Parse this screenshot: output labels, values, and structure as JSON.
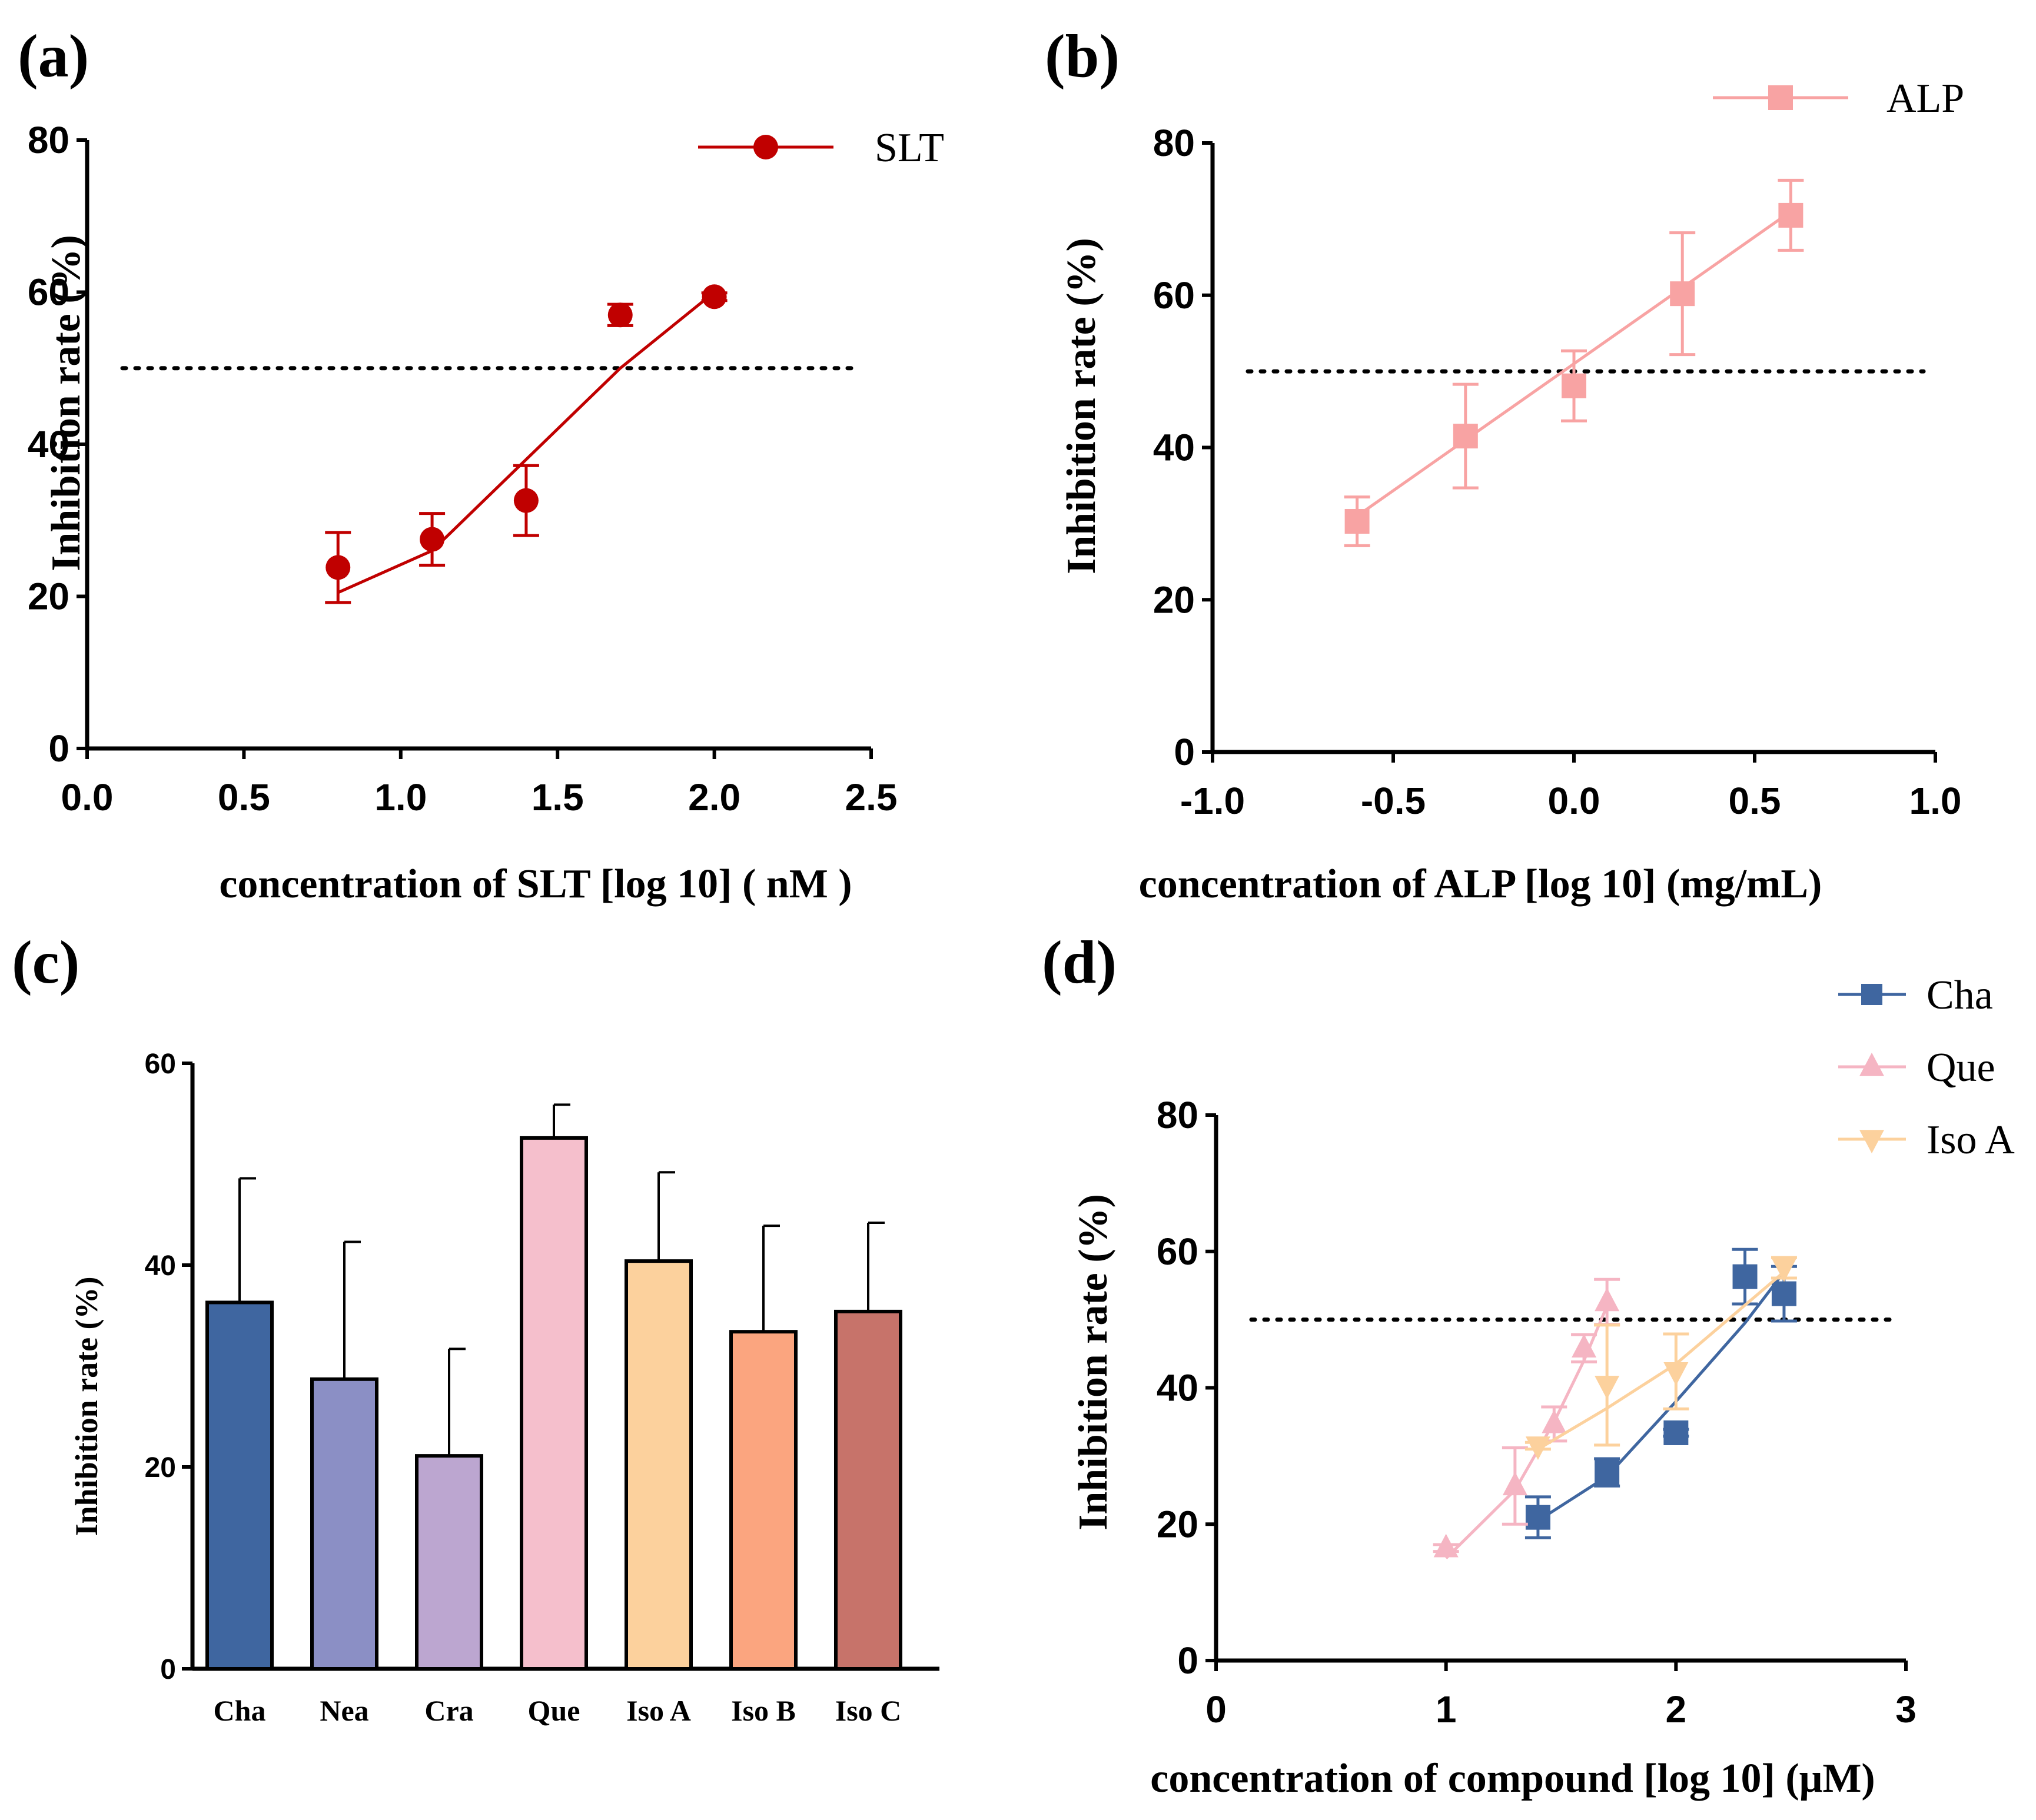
{
  "chart_data": [
    {
      "panel": "(a)",
      "type": "line",
      "xlabel": "concentration of SLT [log 10] ( nM )",
      "ylabel": "Inhibition rate (%)",
      "xlim": [
        0,
        2.5
      ],
      "ylim": [
        0,
        80
      ],
      "xticks": [
        "0.0",
        "0.5",
        "1.0",
        "1.5",
        "2.0",
        "2.5"
      ],
      "yticks": [
        "0",
        "20",
        "40",
        "60",
        "80"
      ],
      "reference_line": 50,
      "legend_position": "top-right",
      "series": [
        {
          "name": "SLT",
          "color": "#c00000",
          "marker": "circle",
          "points": [
            {
              "x": 0.8,
              "y": 23.8,
              "err": 4.6
            },
            {
              "x": 1.1,
              "y": 27.5,
              "err": 3.4
            },
            {
              "x": 1.4,
              "y": 32.6,
              "err": 4.6
            },
            {
              "x": 1.7,
              "y": 57.0,
              "err": 1.4
            },
            {
              "x": 2.0,
              "y": 59.4,
              "err": 0.5
            }
          ],
          "fit": [
            [
              0.8,
              20.5
            ],
            [
              1.1,
              26.0
            ],
            [
              1.4,
              38.0
            ],
            [
              1.7,
              50.0
            ],
            [
              2.0,
              60.0
            ]
          ]
        }
      ]
    },
    {
      "panel": "(b)",
      "type": "line",
      "xlabel": "concentration of ALP [log 10] (mg/mL)",
      "ylabel": "Inhibition rate (%)",
      "xlim": [
        -1.0,
        1.0
      ],
      "ylim": [
        0,
        80
      ],
      "xticks": [
        "-1.0",
        "-0.5",
        "0.0",
        "0.5",
        "1.0"
      ],
      "yticks": [
        "0",
        "20",
        "40",
        "60",
        "80"
      ],
      "reference_line": 50,
      "legend_position": "top-right",
      "series": [
        {
          "name": "ALP",
          "color": "#f8a3a3",
          "marker": "square",
          "points": [
            {
              "x": -0.6,
              "y": 30.3,
              "err": 3.2
            },
            {
              "x": -0.3,
              "y": 41.5,
              "err": 6.8
            },
            {
              "x": 0.0,
              "y": 48.1,
              "err": 4.6
            },
            {
              "x": 0.3,
              "y": 60.2,
              "err": 8.0
            },
            {
              "x": 0.6,
              "y": 70.5,
              "err": 4.6
            }
          ],
          "fit": [
            [
              -0.6,
              31.0
            ],
            [
              0.6,
              71.0
            ]
          ]
        }
      ]
    },
    {
      "panel": "(c)",
      "type": "bar",
      "ylabel": "Inhibition rate (%)",
      "ylim": [
        0,
        60
      ],
      "yticks": [
        "0",
        "20",
        "40",
        "60"
      ],
      "categories": [
        "Cha",
        "Nea",
        "Cra",
        "Que",
        "Iso A",
        "Iso B",
        "Iso C"
      ],
      "values": [
        36.3,
        28.7,
        21.1,
        52.6,
        40.4,
        33.4,
        35.4
      ],
      "errors": [
        12.3,
        13.6,
        10.6,
        3.3,
        8.8,
        10.5,
        8.8
      ],
      "colors": [
        "#3f66a0",
        "#8b8fc5",
        "#bca6d0",
        "#f5bfcc",
        "#fcd19d",
        "#fba57f",
        "#c7736a"
      ]
    },
    {
      "panel": "(d)",
      "type": "line",
      "xlabel": "concentration of compound [log 10] (μM)",
      "ylabel": "Inhibition rate (%)",
      "xlim": [
        0,
        3
      ],
      "ylim": [
        0,
        80
      ],
      "xticks": [
        "0",
        "1",
        "2",
        "3"
      ],
      "yticks": [
        "0",
        "20",
        "40",
        "60",
        "80"
      ],
      "reference_line": 50,
      "legend_position": "top-right",
      "series": [
        {
          "name": "Cha",
          "color": "#3f66a0",
          "marker": "square",
          "points": [
            {
              "x": 1.4,
              "y": 21.0,
              "err": 3.0
            },
            {
              "x": 1.7,
              "y": 27.6,
              "err": 2.0
            },
            {
              "x": 2.0,
              "y": 33.4,
              "err": 0.5
            },
            {
              "x": 2.3,
              "y": 56.3,
              "err": 4.0
            },
            {
              "x": 2.47,
              "y": 53.8,
              "err": 4.0
            }
          ],
          "fit": [
            [
              1.4,
              20.5
            ],
            [
              1.7,
              27.0
            ],
            [
              2.0,
              38.0
            ],
            [
              2.3,
              49.5
            ],
            [
              2.47,
              57.0
            ]
          ]
        },
        {
          "name": "Que",
          "color": "#f5b5c3",
          "marker": "triangle-up",
          "points": [
            {
              "x": 1.0,
              "y": 16.5,
              "err": 0.5
            },
            {
              "x": 1.3,
              "y": 25.6,
              "err": 5.6
            },
            {
              "x": 1.47,
              "y": 34.7,
              "err": 2.5
            },
            {
              "x": 1.6,
              "y": 45.8,
              "err": 2.0
            },
            {
              "x": 1.7,
              "y": 52.6,
              "err": 3.3
            }
          ],
          "fit": [
            [
              1.0,
              15.0
            ],
            [
              1.3,
              25.0
            ],
            [
              1.47,
              35.0
            ],
            [
              1.6,
              44.0
            ],
            [
              1.7,
              52.0
            ]
          ]
        },
        {
          "name": "Iso A",
          "color": "#fcd19d",
          "marker": "triangle-down",
          "points": [
            {
              "x": 1.4,
              "y": 31.5,
              "err": 0.5
            },
            {
              "x": 1.7,
              "y": 40.4,
              "err": 8.8
            },
            {
              "x": 2.0,
              "y": 42.4,
              "err": 5.5
            },
            {
              "x": 2.47,
              "y": 57.6,
              "err": 1.5
            }
          ],
          "fit": [
            [
              1.4,
              31.0
            ],
            [
              1.7,
              37.0
            ],
            [
              2.0,
              43.5
            ],
            [
              2.47,
              57.0
            ]
          ]
        }
      ]
    }
  ]
}
